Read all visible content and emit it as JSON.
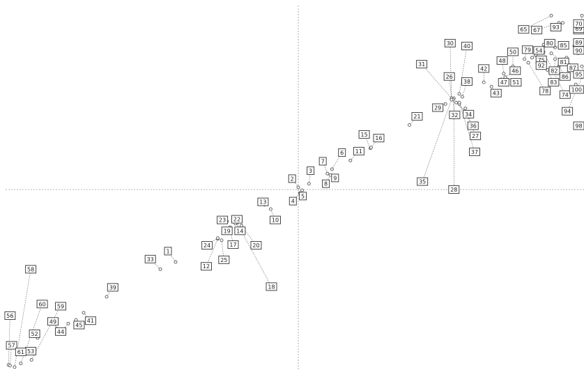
{
  "chart_data": {
    "type": "scatter",
    "title": "",
    "xlabel": "",
    "ylabel": "",
    "grid": false,
    "reference_lines": [
      "vertical dashed line through origin",
      "horizontal dashed line through origin"
    ],
    "xlim": [
      -4.0,
      3.8
    ],
    "ylim": [
      -2.5,
      2.5
    ],
    "points": [
      {
        "label": "1",
        "x": -1.6,
        "y": -1.0,
        "lx": -1.7,
        "ly": -0.85
      },
      {
        "label": "2",
        "x": 0.0,
        "y": 0.03,
        "lx": -0.08,
        "ly": 0.15
      },
      {
        "label": "3",
        "x": 0.14,
        "y": 0.08,
        "lx": 0.16,
        "ly": 0.26
      },
      {
        "label": "4",
        "x": 0.02,
        "y": -0.05,
        "lx": -0.07,
        "ly": -0.16
      },
      {
        "label": "5",
        "x": 0.05,
        "y": -0.01,
        "lx": 0.06,
        "ly": -0.09
      },
      {
        "label": "6",
        "x": 0.44,
        "y": 0.28,
        "lx": 0.57,
        "ly": 0.51
      },
      {
        "label": "7",
        "x": 0.38,
        "y": 0.22,
        "lx": 0.32,
        "ly": 0.39
      },
      {
        "label": "8",
        "x": 0.42,
        "y": 0.2,
        "lx": 0.36,
        "ly": 0.08
      },
      {
        "label": "9",
        "x": 0.48,
        "y": 0.18,
        "lx": 0.48,
        "ly": 0.16
      },
      {
        "label": "10",
        "x": -0.36,
        "y": -0.27,
        "lx": -0.3,
        "ly": -0.42
      },
      {
        "label": "11",
        "x": 0.68,
        "y": 0.4,
        "lx": 0.79,
        "ly": 0.53
      },
      {
        "label": "12",
        "x": -1.05,
        "y": -0.68,
        "lx": -1.2,
        "ly": -1.06
      },
      {
        "label": "13",
        "x": -0.44,
        "y": -0.21,
        "lx": -0.46,
        "ly": -0.17
      },
      {
        "label": "14",
        "x": -0.82,
        "y": -0.45,
        "lx": -0.76,
        "ly": -0.57
      },
      {
        "label": "15",
        "x": 0.94,
        "y": 0.57,
        "lx": 0.86,
        "ly": 0.76
      },
      {
        "label": "16",
        "x": 0.95,
        "y": 0.58,
        "lx": 1.05,
        "ly": 0.71
      },
      {
        "label": "17",
        "x": -0.89,
        "y": -0.52,
        "lx": -0.85,
        "ly": -0.76
      },
      {
        "label": "18",
        "x": -0.8,
        "y": -0.46,
        "lx": -0.35,
        "ly": -1.34
      },
      {
        "label": "19",
        "x": -0.98,
        "y": -0.58,
        "lx": -0.93,
        "ly": -0.57
      },
      {
        "label": "20",
        "x": -0.74,
        "y": -0.5,
        "lx": -0.55,
        "ly": -0.77
      },
      {
        "label": "21",
        "x": 1.45,
        "y": 0.89,
        "lx": 1.55,
        "ly": 1.01
      },
      {
        "label": "22",
        "x": -0.82,
        "y": -0.47,
        "lx": -0.8,
        "ly": -0.41
      },
      {
        "label": "23",
        "x": -0.93,
        "y": -0.44,
        "lx": -0.99,
        "ly": -0.42
      },
      {
        "label": "24",
        "x": -1.05,
        "y": -0.67,
        "lx": -1.19,
        "ly": -0.77
      },
      {
        "label": "25",
        "x": -1.0,
        "y": -0.7,
        "lx": -0.97,
        "ly": -0.97
      },
      {
        "label": "26",
        "x": 2.0,
        "y": 1.25,
        "lx": 1.97,
        "ly": 1.56
      },
      {
        "label": "27",
        "x": 2.18,
        "y": 1.12,
        "lx": 2.31,
        "ly": 0.74
      },
      {
        "label": "28",
        "x": 2.03,
        "y": 1.26,
        "lx": 2.03,
        "ly": 0.0
      },
      {
        "label": "29",
        "x": 1.92,
        "y": 1.18,
        "lx": 1.82,
        "ly": 1.13
      },
      {
        "label": "30",
        "x": 2.0,
        "y": 1.26,
        "lx": 1.98,
        "ly": 2.02
      },
      {
        "label": "31",
        "x": 2.0,
        "y": 1.26,
        "lx": 1.61,
        "ly": 1.73
      },
      {
        "label": "32",
        "x": 2.02,
        "y": 1.24,
        "lx": 2.04,
        "ly": 1.03
      },
      {
        "label": "33",
        "x": -1.8,
        "y": -1.1,
        "lx": -1.93,
        "ly": -0.96
      },
      {
        "label": "34",
        "x": 2.06,
        "y": 1.2,
        "lx": 2.22,
        "ly": 1.04
      },
      {
        "label": "35",
        "x": 2.0,
        "y": 1.24,
        "lx": 1.62,
        "ly": 0.11
      },
      {
        "label": "36",
        "x": 2.1,
        "y": 1.18,
        "lx": 2.28,
        "ly": 0.88
      },
      {
        "label": "37",
        "x": 2.1,
        "y": 1.2,
        "lx": 2.3,
        "ly": 0.52
      },
      {
        "label": "38",
        "x": 2.14,
        "y": 1.28,
        "lx": 2.2,
        "ly": 1.49
      },
      {
        "label": "39",
        "x": -2.5,
        "y": -1.48,
        "lx": -2.42,
        "ly": -1.35
      },
      {
        "label": "40",
        "x": 2.1,
        "y": 1.32,
        "lx": 2.2,
        "ly": 1.98
      },
      {
        "label": "41",
        "x": -2.8,
        "y": -1.7,
        "lx": -2.71,
        "ly": -1.81
      },
      {
        "label": "42",
        "x": 2.42,
        "y": 1.48,
        "lx": 2.42,
        "ly": 1.67
      },
      {
        "label": "43",
        "x": 2.52,
        "y": 1.42,
        "lx": 2.58,
        "ly": 1.33
      },
      {
        "label": "44",
        "x": -3.0,
        "y": -1.85,
        "lx": -3.1,
        "ly": -1.96
      },
      {
        "label": "45",
        "x": -2.9,
        "y": -1.8,
        "lx": -2.86,
        "ly": -1.87
      },
      {
        "label": "46",
        "x": 2.7,
        "y": 1.55,
        "lx": 2.83,
        "ly": 1.64
      },
      {
        "label": "47",
        "x": 2.65,
        "y": 1.52,
        "lx": 2.68,
        "ly": 1.48
      },
      {
        "label": "48",
        "x": 2.68,
        "y": 1.6,
        "lx": 2.66,
        "ly": 1.78
      },
      {
        "label": "49",
        "x": -3.15,
        "y": -1.92,
        "lx": -3.2,
        "ly": -1.82
      },
      {
        "label": "50",
        "x": 2.8,
        "y": 1.7,
        "lx": 2.8,
        "ly": 1.9
      },
      {
        "label": "51",
        "x": 2.7,
        "y": 1.55,
        "lx": 2.84,
        "ly": 1.48
      },
      {
        "label": "52",
        "x": -3.4,
        "y": -2.05,
        "lx": -3.44,
        "ly": -1.99
      },
      {
        "label": "53",
        "x": -3.55,
        "y": -2.2,
        "lx": -3.49,
        "ly": -2.23
      },
      {
        "label": "54",
        "x": 3.05,
        "y": 1.82,
        "lx": 3.14,
        "ly": 1.92
      },
      {
        "label": "56",
        "x": -3.78,
        "y": -2.42,
        "lx": -3.76,
        "ly": -1.74
      },
      {
        "label": "57",
        "x": -3.76,
        "y": -2.43,
        "lx": -3.74,
        "ly": -2.15
      },
      {
        "label": "58",
        "x": -3.7,
        "y": -2.45,
        "lx": -3.49,
        "ly": -1.1
      },
      {
        "label": "59",
        "x": -3.48,
        "y": -2.35,
        "lx": -3.1,
        "ly": -1.61
      },
      {
        "label": "60",
        "x": -3.62,
        "y": -2.4,
        "lx": -3.34,
        "ly": -1.58
      },
      {
        "label": "61",
        "x": -3.58,
        "y": -2.22,
        "lx": -3.62,
        "ly": -2.24
      },
      {
        "label": "62",
        "x": 3.8,
        "y": 2.3,
        "lx": 3.77,
        "ly": 2.2
      },
      {
        "label": "65",
        "x": 3.3,
        "y": 2.4,
        "lx": 2.94,
        "ly": 2.21
      },
      {
        "label": "67",
        "x": 3.4,
        "y": 2.3,
        "lx": 3.11,
        "ly": 2.2
      },
      {
        "label": "69",
        "x": 3.7,
        "y": 2.4,
        "lx": 3.68,
        "ly": 2.22
      },
      {
        "label": "70",
        "x": 3.8,
        "y": 2.35,
        "lx": 3.71,
        "ly": 2.29
      },
      {
        "label": "74",
        "x": 3.2,
        "y": 1.9,
        "lx": 3.48,
        "ly": 1.31
      },
      {
        "label": "75",
        "x": 3.1,
        "y": 1.85,
        "lx": 3.17,
        "ly": 1.79
      },
      {
        "label": "78",
        "x": 3.0,
        "y": 1.75,
        "lx": 3.22,
        "ly": 1.36
      },
      {
        "label": "79",
        "x": 2.95,
        "y": 1.8,
        "lx": 2.99,
        "ly": 1.93
      },
      {
        "label": "80",
        "x": 3.2,
        "y": 2.0,
        "lx": 3.28,
        "ly": 2.02
      },
      {
        "label": "81",
        "x": 3.3,
        "y": 1.88,
        "lx": 3.46,
        "ly": 1.76
      },
      {
        "label": "82",
        "x": 3.35,
        "y": 1.8,
        "lx": 3.34,
        "ly": 1.64
      },
      {
        "label": "83",
        "x": 3.25,
        "y": 1.65,
        "lx": 3.33,
        "ly": 1.48
      },
      {
        "label": "85",
        "x": 3.35,
        "y": 1.96,
        "lx": 3.46,
        "ly": 1.99
      },
      {
        "label": "86",
        "x": 3.4,
        "y": 1.7,
        "lx": 3.48,
        "ly": 1.56
      },
      {
        "label": "87",
        "x": 3.5,
        "y": 1.82,
        "lx": 3.58,
        "ly": 1.68
      },
      {
        "label": "89",
        "x": 3.6,
        "y": 1.98,
        "lx": 3.67,
        "ly": 2.03
      },
      {
        "label": "90",
        "x": 3.65,
        "y": 1.88,
        "lx": 3.74,
        "ly": 1.92
      },
      {
        "label": "92",
        "x": 3.15,
        "y": 1.78,
        "lx": 3.17,
        "ly": 1.71
      },
      {
        "label": "93",
        "x": 3.45,
        "y": 2.3,
        "lx": 3.36,
        "ly": 2.24
      },
      {
        "label": "94",
        "x": 3.7,
        "y": 1.55,
        "lx": 3.51,
        "ly": 1.08
      },
      {
        "label": "95",
        "x": 3.7,
        "y": 1.7,
        "lx": 3.74,
        "ly": 1.59
      },
      {
        "label": "98",
        "x": 3.75,
        "y": 1.5,
        "lx": 3.79,
        "ly": 0.88
      },
      {
        "label": "100",
        "x": 3.62,
        "y": 1.45,
        "lx": 3.63,
        "ly": 1.38
      }
    ]
  }
}
